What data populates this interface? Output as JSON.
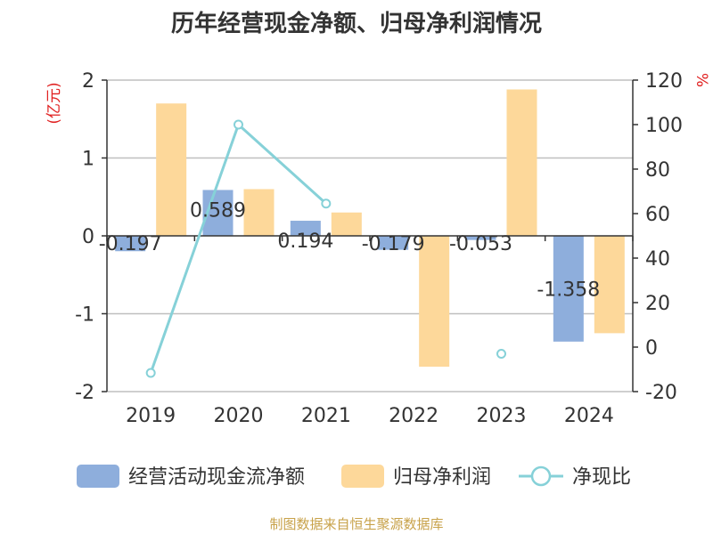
{
  "title": "历年经营现金净额、归母净利润情况",
  "source_note": "制图数据来自恒生聚源数据库",
  "colors": {
    "bar1": "#8eaedc",
    "bar2": "#fdd89a",
    "line": "#86d1d8",
    "unit": "#e02020",
    "grid": "#bfbfbf",
    "source": "#c8a24a"
  },
  "chart_data": {
    "type": "bar",
    "categories": [
      "2019",
      "2020",
      "2021",
      "2022",
      "2023",
      "2024"
    ],
    "left_axis": {
      "unit": "(亿元)",
      "ylim": [
        -2,
        2
      ],
      "ticks": [
        "2",
        "1",
        "0",
        "-1",
        "-2"
      ]
    },
    "right_axis": {
      "unit": "%",
      "ylim": [
        -20,
        120
      ],
      "ticks": [
        "120",
        "100",
        "80",
        "60",
        "40",
        "20",
        "0",
        "-20"
      ]
    },
    "series": [
      {
        "name": "经营活动现金流净额",
        "type": "bar",
        "axis": "left",
        "values": [
          -0.197,
          0.589,
          0.194,
          -0.179,
          -0.053,
          -1.358
        ],
        "labels": [
          "-0.197",
          "0.589",
          "0.194",
          "-0.179",
          "-0.053",
          "-1.358"
        ]
      },
      {
        "name": "归母净利润",
        "type": "bar",
        "axis": "left",
        "values": [
          1.7,
          0.6,
          0.3,
          -1.68,
          1.88,
          -1.25
        ]
      },
      {
        "name": "净现比",
        "type": "line",
        "axis": "right",
        "values": [
          -11.6,
          100,
          64.5,
          null,
          -3.0,
          null
        ]
      }
    ],
    "grid": true,
    "legend_position": "bottom"
  }
}
